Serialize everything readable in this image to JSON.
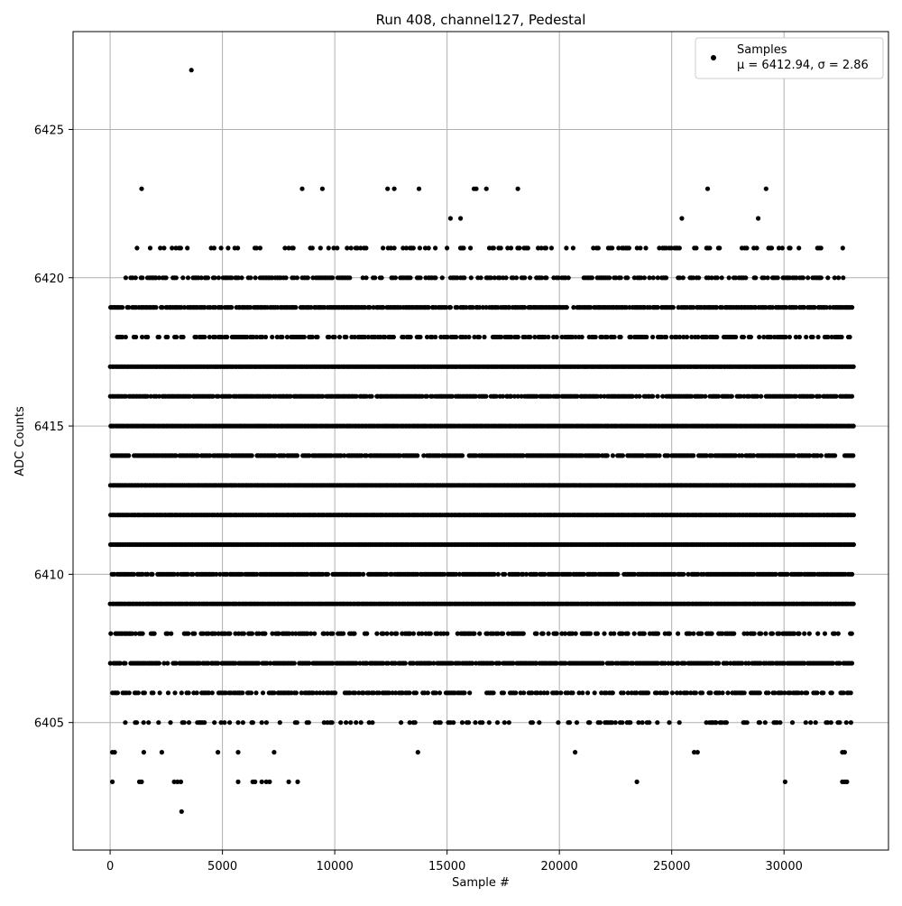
{
  "chart_data": {
    "type": "scatter",
    "title": "Run 408, channel127, Pedestal",
    "xlabel": "Sample #",
    "ylabel": "ADC Counts",
    "xlim": [
      -1650,
      34650
    ],
    "ylim": [
      6400.7,
      6428.3
    ],
    "xticks": [
      0,
      5000,
      10000,
      15000,
      20000,
      25000,
      30000
    ],
    "yticks": [
      6405,
      6410,
      6415,
      6420,
      6425
    ],
    "grid": true,
    "legend_position": "top-right",
    "marker_color": "#000000",
    "series": [
      {
        "name": "Samples",
        "stats_label": "μ = 6412.94, σ = 2.86",
        "n_samples": 33100,
        "mean": 6412.94,
        "std": 2.86,
        "levels": [
          {
            "y": 6402,
            "x_start": 3150,
            "x_end": 3250,
            "density": "isolated",
            "points": [
              3180
            ]
          },
          {
            "y": 6403,
            "x_start": 0,
            "x_end": 33000,
            "density": "sparse",
            "points": [
              100,
              1300,
              1400,
              2850,
              3000,
              3150,
              5700,
              6350,
              6450,
              6750,
              6950,
              7100,
              7950,
              8350,
              23450,
              30050,
              32600,
              32700,
              32800
            ]
          },
          {
            "y": 6404,
            "x_start": 0,
            "x_end": 33000,
            "density": "sparse",
            "points": [
              100,
              200,
              1500,
              2300,
              4800,
              5700,
              7300,
              13700,
              20700,
              26000,
              26150,
              32600,
              32700
            ]
          },
          {
            "y": 6405,
            "x_start": 200,
            "x_end": 33000,
            "density": "low"
          },
          {
            "y": 6406,
            "x_start": 100,
            "x_end": 33000,
            "density": "medium"
          },
          {
            "y": 6407,
            "x_start": 0,
            "x_end": 33100,
            "density": "high"
          },
          {
            "y": 6408,
            "x_start": 0,
            "x_end": 33000,
            "density": "medium"
          },
          {
            "y": 6409,
            "x_start": 0,
            "x_end": 33100,
            "density": "very-high"
          },
          {
            "y": 6410,
            "x_start": 0,
            "x_end": 33100,
            "density": "high"
          },
          {
            "y": 6411,
            "x_start": 0,
            "x_end": 33100,
            "density": "very-high"
          },
          {
            "y": 6412,
            "x_start": 0,
            "x_end": 33100,
            "density": "very-high"
          },
          {
            "y": 6413,
            "x_start": 0,
            "x_end": 33100,
            "density": "very-high"
          },
          {
            "y": 6414,
            "x_start": 0,
            "x_end": 33100,
            "density": "high"
          },
          {
            "y": 6415,
            "x_start": 0,
            "x_end": 33100,
            "density": "very-high"
          },
          {
            "y": 6416,
            "x_start": 0,
            "x_end": 33000,
            "density": "high"
          },
          {
            "y": 6417,
            "x_start": 0,
            "x_end": 33100,
            "density": "very-high"
          },
          {
            "y": 6418,
            "x_start": 0,
            "x_end": 33000,
            "density": "medium"
          },
          {
            "y": 6419,
            "x_start": 0,
            "x_end": 33000,
            "density": "high"
          },
          {
            "y": 6420,
            "x_start": 600,
            "x_end": 32700,
            "density": "medium"
          },
          {
            "y": 6421,
            "x_start": 800,
            "x_end": 32600,
            "density": "low"
          },
          {
            "y": 6422,
            "x_start": 15000,
            "x_end": 29000,
            "density": "isolated",
            "points": [
              15150,
              15600,
              25450,
              28850
            ]
          },
          {
            "y": 6423,
            "x_start": 1400,
            "x_end": 29300,
            "density": "isolated",
            "points": [
              1400,
              8550,
              9450,
              12350,
              12650,
              13750,
              16200,
              16300,
              16750,
              18150,
              26600,
              29200
            ]
          },
          {
            "y": 6427,
            "x_start": 3600,
            "x_end": 3650,
            "density": "isolated",
            "points": [
              3620
            ]
          }
        ]
      }
    ]
  }
}
